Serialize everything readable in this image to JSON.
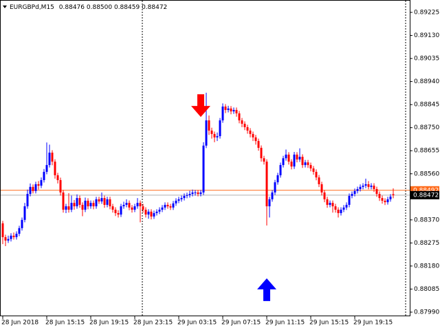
{
  "chart_data": {
    "type": "candlestick",
    "header": {
      "symbol": "EURGBPd,M15",
      "ohlc": [
        "0.88476",
        "0.88500",
        "0.88459",
        "0.88472"
      ]
    },
    "up_color": "#0000ff",
    "down_color": "#ff0000",
    "ylim": [
      0.87973,
      0.89276
    ],
    "yticks": [
      0.89225,
      {
        "value": 0.8913,
        "label": "0.89130"
      },
      0.89035,
      {
        "value": 0.8894,
        "label": "0.88940"
      },
      0.88845,
      {
        "value": 0.8875,
        "label": "0.88750"
      },
      0.88655,
      {
        "value": 0.8856,
        "label": "0.88560"
      },
      {
        "value": 0.8837,
        "label": "0.88370"
      },
      0.88275,
      {
        "value": 0.8818,
        "label": "0.88180"
      },
      0.88085,
      {
        "value": 0.8799,
        "label": "0.87990"
      }
    ],
    "ask": 0.88492,
    "ask_color": "#ff6a1a",
    "bid": 0.88472,
    "bid_color": "#000000",
    "arrows": [
      {
        "index": 72,
        "price": 0.88794,
        "direction": "down",
        "color": "#ff0000"
      },
      {
        "index": 96,
        "price": 0.88129,
        "direction": "up",
        "color": "#0000ff"
      }
    ],
    "categories": [
      "28 Jun 2018",
      null,
      null,
      null,
      null,
      null,
      null,
      null,
      null,
      null,
      null,
      null,
      null,
      null,
      null,
      null,
      "28 Jun 15:15",
      null,
      null,
      null,
      null,
      null,
      null,
      null,
      null,
      null,
      null,
      null,
      null,
      null,
      null,
      null,
      "28 Jun 19:15",
      null,
      null,
      null,
      null,
      null,
      null,
      null,
      null,
      null,
      null,
      null,
      null,
      null,
      null,
      null,
      "28 Jun 23:15",
      null,
      null,
      null,
      null,
      null,
      null,
      null,
      null,
      null,
      null,
      null,
      null,
      null,
      null,
      null,
      "29 Jun 03:15",
      null,
      null,
      null,
      null,
      null,
      null,
      null,
      null,
      null,
      null,
      null,
      null,
      null,
      null,
      null,
      "29 Jun 07:15",
      null,
      null,
      null,
      null,
      null,
      null,
      null,
      null,
      null,
      null,
      null,
      null,
      null,
      null,
      null,
      "29 Jun 11:15",
      null,
      null,
      null,
      null,
      null,
      null,
      null,
      null,
      null,
      null,
      null,
      null,
      null,
      null,
      null,
      "29 Jun 15:15",
      null,
      null,
      null,
      null,
      null,
      null,
      null,
      null,
      null,
      null,
      null,
      null,
      null,
      null,
      null,
      "29 Jun 19:15",
      null,
      null,
      null,
      null,
      null,
      null,
      null,
      null,
      null,
      null,
      null,
      null,
      null,
      null
    ],
    "ohlc": [
      [
        0.88356,
        0.88366,
        0.8827,
        0.88299
      ],
      [
        0.88299,
        0.88309,
        0.88262,
        0.88285
      ],
      [
        0.88285,
        0.88305,
        0.88275,
        0.88291
      ],
      [
        0.88291,
        0.88315,
        0.88281,
        0.88305
      ],
      [
        0.88305,
        0.88318,
        0.88289,
        0.88299
      ],
      [
        0.88299,
        0.88323,
        0.88289,
        0.88313
      ],
      [
        0.88313,
        0.88346,
        0.88303,
        0.88336
      ],
      [
        0.88336,
        0.8838,
        0.88326,
        0.8837
      ],
      [
        0.8837,
        0.8844,
        0.8836,
        0.88426
      ],
      [
        0.88426,
        0.88495,
        0.88416,
        0.88477
      ],
      [
        0.88477,
        0.8852,
        0.88467,
        0.88506
      ],
      [
        0.88506,
        0.88516,
        0.88479,
        0.88489
      ],
      [
        0.88489,
        0.88527,
        0.88479,
        0.88517
      ],
      [
        0.88517,
        0.8853,
        0.88495,
        0.88511
      ],
      [
        0.88511,
        0.88545,
        0.88501,
        0.88534
      ],
      [
        0.88534,
        0.8858,
        0.88524,
        0.88568
      ],
      [
        0.88568,
        0.88689,
        0.88558,
        0.88596
      ],
      [
        0.88596,
        0.8868,
        0.88586,
        0.88647
      ],
      [
        0.88647,
        0.88657,
        0.88595,
        0.8861
      ],
      [
        0.8861,
        0.8862,
        0.8854,
        0.88554
      ],
      [
        0.88554,
        0.88564,
        0.8852,
        0.88534
      ],
      [
        0.88534,
        0.88544,
        0.8847,
        0.88483
      ],
      [
        0.88483,
        0.88493,
        0.884,
        0.88412
      ],
      [
        0.88412,
        0.88436,
        0.88398,
        0.88426
      ],
      [
        0.88426,
        0.8848,
        0.884,
        0.88412
      ],
      [
        0.88412,
        0.8847,
        0.88402,
        0.8844
      ],
      [
        0.8844,
        0.88452,
        0.88412,
        0.88426
      ],
      [
        0.88426,
        0.88475,
        0.88416,
        0.8846
      ],
      [
        0.8846,
        0.8847,
        0.8842,
        0.88432
      ],
      [
        0.88432,
        0.88442,
        0.88385,
        0.88412
      ],
      [
        0.88412,
        0.88462,
        0.88402,
        0.88449
      ],
      [
        0.88449,
        0.88459,
        0.88414,
        0.88426
      ],
      [
        0.88426,
        0.8845,
        0.88416,
        0.8844
      ],
      [
        0.8844,
        0.8845,
        0.88414,
        0.88426
      ],
      [
        0.88426,
        0.88465,
        0.88416,
        0.88455
      ],
      [
        0.88455,
        0.88465,
        0.88436,
        0.88446
      ],
      [
        0.88446,
        0.88483,
        0.88436,
        0.8846
      ],
      [
        0.8846,
        0.8847,
        0.8842,
        0.88432
      ],
      [
        0.88432,
        0.88465,
        0.88422,
        0.88455
      ],
      [
        0.88455,
        0.88465,
        0.88414,
        0.88426
      ],
      [
        0.88426,
        0.88436,
        0.884,
        0.88412
      ],
      [
        0.88412,
        0.88422,
        0.88386,
        0.88398
      ],
      [
        0.88398,
        0.8841,
        0.8838,
        0.88392
      ],
      [
        0.88392,
        0.88436,
        0.88382,
        0.88426
      ],
      [
        0.88426,
        0.88445,
        0.88416,
        0.88432
      ],
      [
        0.88432,
        0.88455,
        0.88422,
        0.8844
      ],
      [
        0.8844,
        0.8845,
        0.8841,
        0.88421
      ],
      [
        0.88421,
        0.88431,
        0.884,
        0.88412
      ],
      [
        0.88412,
        0.88436,
        0.88402,
        0.88426
      ],
      [
        0.88426,
        0.8846,
        0.88416,
        0.8844
      ],
      [
        0.8844,
        0.8845,
        0.8836,
        0.88426
      ],
      [
        0.88426,
        0.88436,
        0.884,
        0.88412
      ],
      [
        0.88412,
        0.88422,
        0.8838,
        0.88392
      ],
      [
        0.88392,
        0.88414,
        0.88375,
        0.88404
      ],
      [
        0.88404,
        0.88414,
        0.88372,
        0.88384
      ],
      [
        0.88384,
        0.88408,
        0.88374,
        0.88398
      ],
      [
        0.88398,
        0.88414,
        0.88388,
        0.88404
      ],
      [
        0.88404,
        0.88422,
        0.88394,
        0.88412
      ],
      [
        0.88412,
        0.88431,
        0.88402,
        0.88421
      ],
      [
        0.88421,
        0.88442,
        0.88411,
        0.88432
      ],
      [
        0.88432,
        0.88442,
        0.88416,
        0.88426
      ],
      [
        0.88426,
        0.88436,
        0.88411,
        0.88421
      ],
      [
        0.88421,
        0.88448,
        0.88411,
        0.88438
      ],
      [
        0.88438,
        0.88459,
        0.88428,
        0.88449
      ],
      [
        0.88449,
        0.88465,
        0.88439,
        0.88455
      ],
      [
        0.88455,
        0.8847,
        0.88445,
        0.8846
      ],
      [
        0.8846,
        0.88479,
        0.8845,
        0.88469
      ],
      [
        0.88469,
        0.88482,
        0.88459,
        0.88472
      ],
      [
        0.88472,
        0.8849,
        0.88462,
        0.88477
      ],
      [
        0.88477,
        0.88495,
        0.88467,
        0.88483
      ],
      [
        0.88483,
        0.88493,
        0.8847,
        0.88483
      ],
      [
        0.88483,
        0.88493,
        0.88467,
        0.88477
      ],
      [
        0.88477,
        0.88493,
        0.88467,
        0.88483
      ],
      [
        0.88483,
        0.8869,
        0.88473,
        0.88676
      ],
      [
        0.88676,
        0.88894,
        0.88666,
        0.8878
      ],
      [
        0.8878,
        0.888,
        0.8872,
        0.88738
      ],
      [
        0.88738,
        0.8875,
        0.88705,
        0.88724
      ],
      [
        0.88724,
        0.88734,
        0.8869,
        0.8871
      ],
      [
        0.8871,
        0.8873,
        0.88695,
        0.88715
      ],
      [
        0.88715,
        0.8879,
        0.88705,
        0.8878
      ],
      [
        0.8878,
        0.8885,
        0.8877,
        0.88837
      ],
      [
        0.88837,
        0.88847,
        0.8881,
        0.88823
      ],
      [
        0.88823,
        0.8884,
        0.88813,
        0.88829
      ],
      [
        0.88829,
        0.88839,
        0.88805,
        0.88817
      ],
      [
        0.88817,
        0.88833,
        0.88807,
        0.88823
      ],
      [
        0.88823,
        0.88833,
        0.88795,
        0.88809
      ],
      [
        0.88809,
        0.88819,
        0.88768,
        0.8878
      ],
      [
        0.8878,
        0.8879,
        0.88752,
        0.88766
      ],
      [
        0.88766,
        0.88776,
        0.8874,
        0.88752
      ],
      [
        0.88752,
        0.88762,
        0.88725,
        0.88738
      ],
      [
        0.88738,
        0.88748,
        0.8871,
        0.88724
      ],
      [
        0.88724,
        0.88734,
        0.88695,
        0.8871
      ],
      [
        0.8871,
        0.8872,
        0.8868,
        0.88695
      ],
      [
        0.88695,
        0.88705,
        0.88655,
        0.88667
      ],
      [
        0.88667,
        0.88677,
        0.8861,
        0.88624
      ],
      [
        0.88624,
        0.88634,
        0.88598,
        0.8861
      ],
      [
        0.8861,
        0.8862,
        0.88347,
        0.88426
      ],
      [
        0.88426,
        0.88465,
        0.8838,
        0.88455
      ],
      [
        0.88455,
        0.88493,
        0.88445,
        0.88483
      ],
      [
        0.88483,
        0.88535,
        0.88473,
        0.88525
      ],
      [
        0.88525,
        0.88564,
        0.88515,
        0.88554
      ],
      [
        0.88554,
        0.88606,
        0.88544,
        0.88596
      ],
      [
        0.88596,
        0.88634,
        0.88586,
        0.88624
      ],
      [
        0.88624,
        0.8866,
        0.88614,
        0.88639
      ],
      [
        0.88639,
        0.88649,
        0.88598,
        0.8861
      ],
      [
        0.8861,
        0.8862,
        0.88578,
        0.8859
      ],
      [
        0.8859,
        0.8865,
        0.8858,
        0.88639
      ],
      [
        0.88639,
        0.88649,
        0.88607,
        0.88619
      ],
      [
        0.88619,
        0.88665,
        0.88609,
        0.8863
      ],
      [
        0.8863,
        0.8864,
        0.88584,
        0.88596
      ],
      [
        0.88596,
        0.88617,
        0.88586,
        0.88607
      ],
      [
        0.88607,
        0.88617,
        0.88584,
        0.88596
      ],
      [
        0.88596,
        0.88606,
        0.8857,
        0.88582
      ],
      [
        0.88582,
        0.88592,
        0.88556,
        0.88568
      ],
      [
        0.88568,
        0.88578,
        0.88533,
        0.88545
      ],
      [
        0.88545,
        0.88555,
        0.88505,
        0.88517
      ],
      [
        0.88517,
        0.88527,
        0.88471,
        0.88483
      ],
      [
        0.88483,
        0.88493,
        0.88443,
        0.88455
      ],
      [
        0.88455,
        0.88465,
        0.8842,
        0.88432
      ],
      [
        0.88432,
        0.8845,
        0.88422,
        0.8844
      ],
      [
        0.8844,
        0.8845,
        0.884,
        0.88426
      ],
      [
        0.88426,
        0.88436,
        0.884,
        0.88412
      ],
      [
        0.88412,
        0.88422,
        0.8838,
        0.88398
      ],
      [
        0.88398,
        0.88422,
        0.88388,
        0.88412
      ],
      [
        0.88412,
        0.88431,
        0.88402,
        0.88421
      ],
      [
        0.88421,
        0.88442,
        0.88411,
        0.88432
      ],
      [
        0.88432,
        0.88479,
        0.88422,
        0.88469
      ],
      [
        0.88469,
        0.88487,
        0.88459,
        0.88477
      ],
      [
        0.88477,
        0.88499,
        0.88467,
        0.88489
      ],
      [
        0.88489,
        0.88507,
        0.88479,
        0.88497
      ],
      [
        0.88497,
        0.88516,
        0.88487,
        0.88506
      ],
      [
        0.88506,
        0.88521,
        0.88496,
        0.88511
      ],
      [
        0.88511,
        0.8854,
        0.88501,
        0.88517
      ],
      [
        0.88517,
        0.8853,
        0.88496,
        0.88506
      ],
      [
        0.88506,
        0.88521,
        0.88496,
        0.88511
      ],
      [
        0.88511,
        0.88521,
        0.88485,
        0.88497
      ],
      [
        0.88497,
        0.88507,
        0.88465,
        0.88477
      ],
      [
        0.88477,
        0.88487,
        0.88448,
        0.8846
      ],
      [
        0.8846,
        0.8847,
        0.88437,
        0.88449
      ],
      [
        0.88449,
        0.88459,
        0.88431,
        0.88443
      ],
      [
        0.88443,
        0.88465,
        0.88433,
        0.88455
      ],
      [
        0.88455,
        0.88476,
        0.88445,
        0.88466
      ],
      [
        0.88476,
        0.885,
        0.88459,
        0.88472
      ]
    ]
  }
}
